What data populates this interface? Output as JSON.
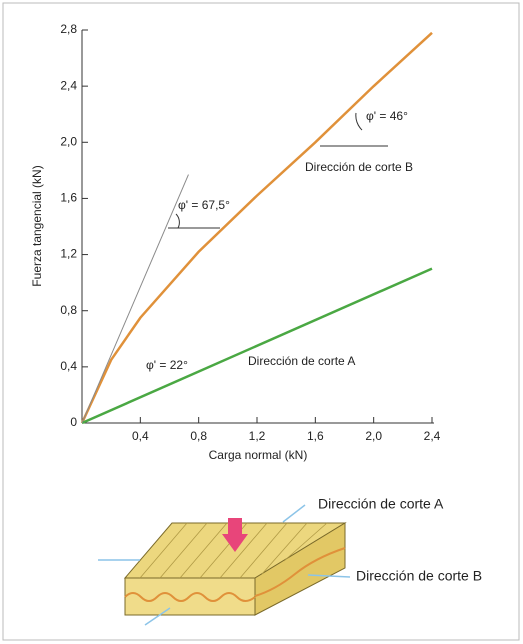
{
  "chart_data": {
    "type": "line",
    "xlabel": "Carga normal (kN)",
    "ylabel": "Fuerza tangencial (kN)",
    "xlim": [
      0,
      2.4
    ],
    "ylim": [
      0,
      2.8
    ],
    "xticks": [
      {
        "value": 0.4,
        "label": "0,4"
      },
      {
        "value": 0.8,
        "label": "0,8"
      },
      {
        "value": 1.2,
        "label": "1,2"
      },
      {
        "value": 1.6,
        "label": "1,6"
      },
      {
        "value": 2.0,
        "label": "2,0"
      },
      {
        "value": 2.4,
        "label": "2,4"
      }
    ],
    "yticks": [
      0,
      {
        "value": 0.4,
        "label": "0,4"
      },
      {
        "value": 0.8,
        "label": "0,8"
      },
      {
        "value": 1.2,
        "label": "1,2"
      },
      {
        "value": 1.6,
        "label": "1,6"
      },
      {
        "value": 2.0,
        "label": "2,0"
      },
      {
        "value": 2.4,
        "label": "2,4"
      },
      {
        "value": 2.8,
        "label": "2,8"
      }
    ],
    "series": [
      {
        "name": "Dirección de corte B",
        "color": "#e0913a",
        "x": [
          0,
          0.2,
          0.4,
          0.8,
          1.2,
          1.6,
          2.0,
          2.4
        ],
        "values": [
          0,
          0.45,
          0.75,
          1.22,
          1.62,
          2.0,
          2.4,
          2.78
        ]
      },
      {
        "name": "Dirección de corte A",
        "color": "#4aa843",
        "x": [
          0,
          2.4
        ],
        "values": [
          0,
          1.1
        ]
      },
      {
        "color": "#8a8a8a",
        "x": [
          0,
          0.73
        ],
        "values": [
          0,
          1.77
        ]
      }
    ],
    "annotations": [
      "φ' = 67,5°",
      "φ' = 46°",
      "φ' = 22°"
    ]
  },
  "diagram": {
    "labels": [
      "Dirección de corte A",
      "Dirección de corte B"
    ]
  }
}
